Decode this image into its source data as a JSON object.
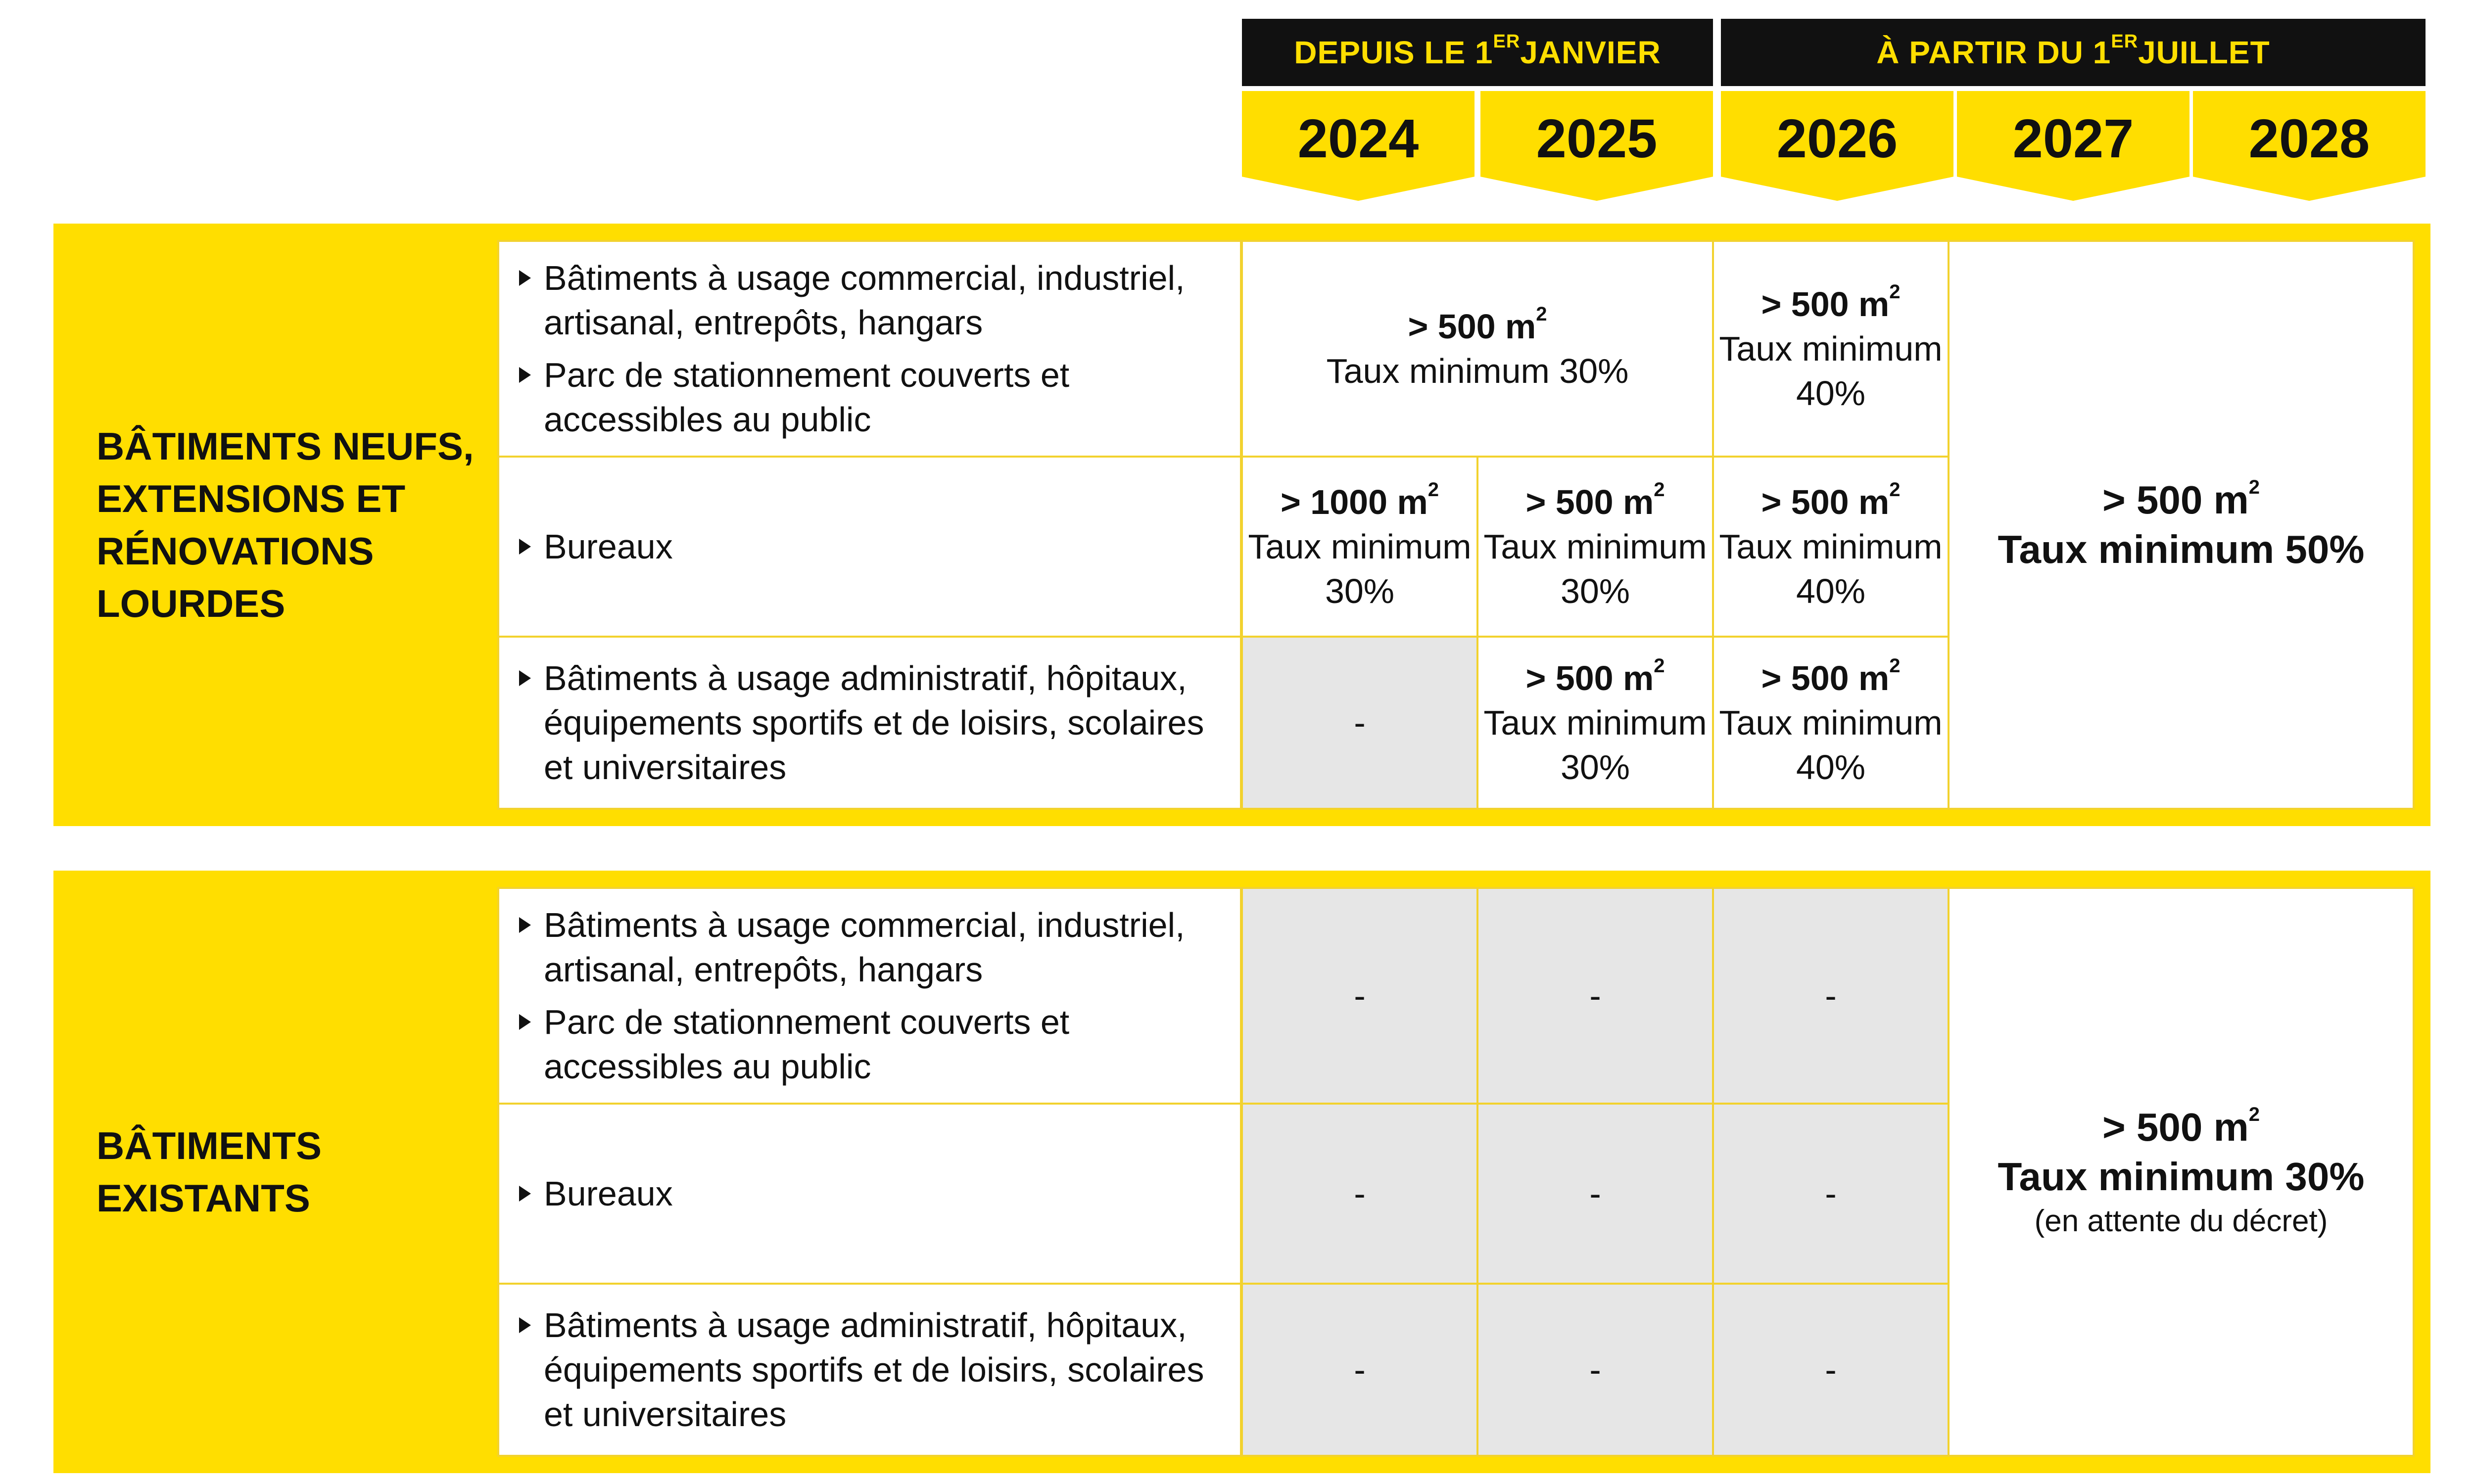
{
  "header": {
    "period_1": {
      "text": "DEPUIS LE 1",
      "sup": "ER",
      "after": " JANVIER"
    },
    "period_2": {
      "text": "À PARTIR DU 1",
      "sup": "ER",
      "after": " JUILLET"
    },
    "years": [
      "2024",
      "2025",
      "2026",
      "2027",
      "2028"
    ]
  },
  "rows": {
    "commercial": [
      "Bâtiments à usage commercial, industriel, artisanal, entrepôts, hangars",
      "Parc de stationnement couverts et accessibles au public"
    ],
    "offices": [
      "Bureaux"
    ],
    "public": [
      "Bâtiments à usage administratif, hôpitaux, équipements sportifs et de loisirs, scolaires et universitaires"
    ]
  },
  "units": {
    "m": " m",
    "sup": "2"
  },
  "labels": {
    "taux": "Taux minimum",
    "dash": "-"
  },
  "sections": {
    "new": {
      "title": [
        "BÂTIMENTS NEUFS,",
        "EXTENSIONS ET",
        "RÉNOVATIONS",
        "LOURDES"
      ],
      "commercial_2024_2025": {
        "area": "> 500",
        "rate": "Taux minimum 30%"
      },
      "commercial_2026": {
        "area": "> 500",
        "rate_label": "Taux minimum",
        "rate_value": "40%"
      },
      "offices_2024": {
        "area": "> 1000",
        "rate_label": "Taux minimum",
        "rate_value": "30%"
      },
      "offices_2025": {
        "area": "> 500",
        "rate_label": "Taux minimum",
        "rate_value": "30%"
      },
      "offices_2026": {
        "area": "> 500",
        "rate_label": "Taux minimum",
        "rate_value": "40%"
      },
      "public_2025": {
        "area": "> 500",
        "rate_label": "Taux minimum",
        "rate_value": "30%"
      },
      "public_2026": {
        "area": "> 500",
        "rate_label": "Taux minimum",
        "rate_value": "40%"
      },
      "merged_2027_2028": {
        "area": "> 500",
        "rate": "Taux minimum 50%"
      }
    },
    "existing": {
      "title": [
        "BÂTIMENTS",
        "EXISTANTS"
      ],
      "merged_2027_2028": {
        "area": "> 500",
        "rate": "Taux minimum 30%",
        "note": "(en attente du décret)"
      }
    }
  },
  "colors": {
    "accent": "#FFDE00",
    "dark": "#111111",
    "na_fill": "#E6E6E6"
  }
}
